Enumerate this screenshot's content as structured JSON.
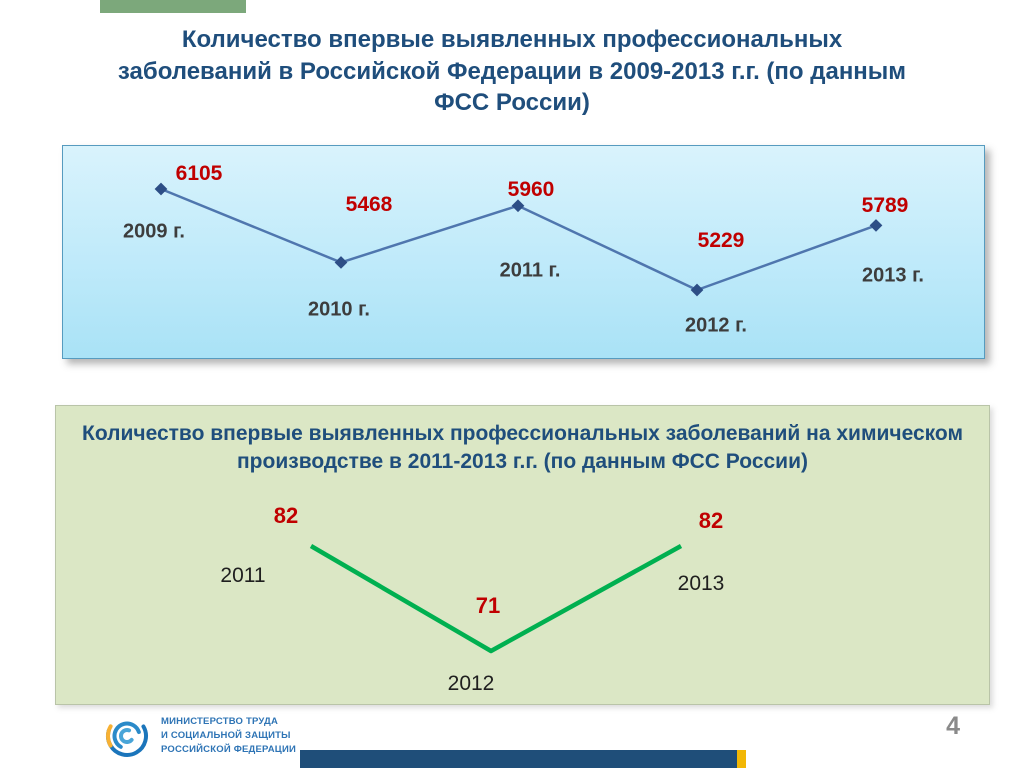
{
  "slide": {
    "title": "Количество впервые выявленных профессиональных заболеваний в Российской Федерации в 2009-2013 г.г. (по данным ФСС России)",
    "page_number": "4"
  },
  "footer": {
    "logo_lines": [
      "МИНИСТЕРСТВО ТРУДА",
      "И СОЦИАЛЬНОЙ ЗАЩИТЫ",
      "РОССИЙСКОЙ ФЕДЕРАЦИИ"
    ]
  },
  "colors": {
    "title_blue": "#1F4E7C",
    "value_red": "#c00000",
    "chart1_line": "#4f76ae",
    "chart1_marker": "#2d4e86",
    "chart2_line": "#00b050",
    "accent_green": "#7CA87B",
    "bottom_bar_blue": "#1F4E79",
    "bottom_bar_yellow": "#F2B705"
  },
  "chart_data": [
    {
      "type": "line",
      "title": "Количество впервые выявленных профессиональных заболеваний в Российской Федерации в 2009-2013 г.г. (по данным ФСС России)",
      "categories": [
        "2009 г.",
        "2010 г.",
        "2011 г.",
        "2012 г.",
        "2013 г."
      ],
      "values": [
        6105,
        5468,
        5960,
        5229,
        5789
      ],
      "line_color": "#4f76ae",
      "marker": "diamond",
      "marker_color": "#2d4e86",
      "value_label_color": "#c00000",
      "category_label_color": "#3d3d3d",
      "grid": false,
      "legend": "none",
      "background": "light-blue-gradient"
    },
    {
      "type": "line",
      "title": "Количество  впервые выявленных профессиональных заболеваний на химическом производстве в 2011-2013 г.г. (по данным ФСС России)",
      "categories": [
        "2011",
        "2012",
        "2013"
      ],
      "values": [
        82,
        71,
        82
      ],
      "line_color": "#00b050",
      "marker": "none",
      "marker_color": "",
      "value_label_color": "#c00000",
      "category_label_color": "#1f1f1f",
      "grid": false,
      "legend": "none",
      "background": "light-green"
    }
  ]
}
